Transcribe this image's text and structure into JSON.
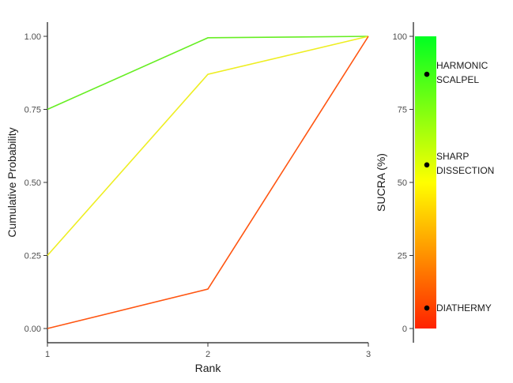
{
  "chart_data": [
    {
      "type": "line",
      "xlabel": "Rank",
      "ylabel": "Cumulative Probability",
      "x": [
        1,
        2,
        3
      ],
      "xticks": [
        "1",
        "2",
        "3"
      ],
      "ylim": [
        0,
        1
      ],
      "yticks": [
        "0.00",
        "0.25",
        "0.50",
        "0.75",
        "1.00"
      ],
      "grid": false,
      "legend": "none",
      "series": [
        {
          "color": "#66ee22",
          "values": [
            0.75,
            0.995,
            1.0
          ]
        },
        {
          "color": "#eeee22",
          "values": [
            0.25,
            0.87,
            1.0
          ]
        },
        {
          "color": "#ff5511",
          "values": [
            0.0,
            0.135,
            1.0
          ]
        }
      ]
    },
    {
      "type": "scatter",
      "ylabel": "SUCRA (%)",
      "ylim": [
        0,
        100
      ],
      "yticks": [
        "0",
        "25",
        "50",
        "75",
        "100"
      ],
      "gradient_colors": [
        "#ff2200",
        "#ffff00",
        "#00ff22"
      ],
      "points": [
        {
          "label_lines": [
            "HARMONIC",
            "SCALPEL"
          ],
          "value": 87
        },
        {
          "label_lines": [
            "SHARP",
            "DISSECTION"
          ],
          "value": 56
        },
        {
          "label_lines": [
            "DIATHERMY"
          ],
          "value": 7
        }
      ]
    }
  ]
}
